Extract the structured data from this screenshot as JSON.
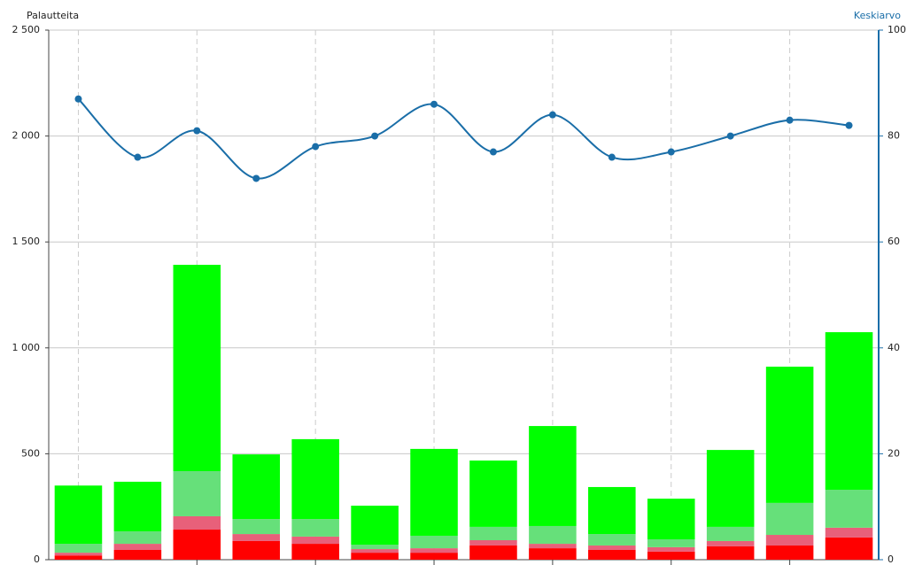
{
  "chart_data": {
    "type": "bar",
    "y_label": "Palautteita",
    "y2_label": "Keskiarvo",
    "categories": [
      null,
      null,
      null,
      null,
      null,
      null,
      null,
      null,
      null,
      null,
      null,
      null,
      null,
      null
    ],
    "series": [
      {
        "color": "#ff0000",
        "values": [
          20,
          46,
          142,
          88,
          75,
          33,
          33,
          67,
          54,
          46,
          38,
          63,
          67,
          105
        ]
      },
      {
        "color": "#e8607a",
        "values": [
          13,
          29,
          63,
          33,
          34,
          17,
          21,
          25,
          21,
          21,
          21,
          25,
          50,
          46
        ]
      },
      {
        "color": "#66e07a",
        "values": [
          42,
          59,
          213,
          71,
          83,
          21,
          59,
          63,
          84,
          54,
          37,
          67,
          151,
          179
        ]
      },
      {
        "color": "#00ff00",
        "values": [
          275,
          234,
          974,
          305,
          377,
          184,
          410,
          313,
          472,
          222,
          192,
          363,
          643,
          744
        ]
      },
      {
        "type": "line",
        "axis": "y2",
        "color": "#1a6ea8",
        "values": [
          87,
          76,
          81,
          72,
          78,
          80,
          86,
          77,
          84,
          76,
          77,
          80,
          83,
          82
        ]
      }
    ],
    "ylim": [
      0,
      2500
    ],
    "yticks": [
      0,
      500,
      {
        "value": 1000,
        "label": "1 000"
      },
      {
        "value": 1500,
        "label": "1 500"
      },
      {
        "value": 2000,
        "label": "2 000"
      },
      {
        "value": 2500,
        "label": "2 500"
      }
    ],
    "y2lim": [
      0,
      100
    ],
    "y2ticks": [
      0,
      20,
      40,
      60,
      80,
      100
    ],
    "grid": true
  }
}
